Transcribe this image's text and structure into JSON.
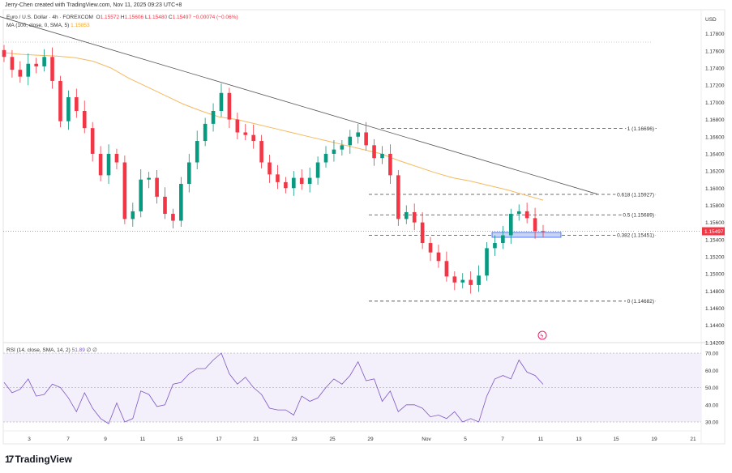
{
  "header": {
    "credit": "Jerry-Chen created with TradingView.com, Nov 11, 2025 09:23 UTC+8",
    "symbol": "Euro / U.S. Dollar · 4h · FOREXCOM",
    "open_label": "O",
    "open": "1.15572",
    "high_label": "H",
    "high": "1.15606",
    "low_label": "L",
    "low": "1.15480",
    "close_label": "C",
    "close": "1.15497",
    "change": "−0.00074 (−0.06%)",
    "ma_label": "MA (100, close, 0, SMA, 5)",
    "ma_value": "1.15853",
    "rsi_label": "RSI (14, close, SMA, 14, 2)",
    "rsi_value": "51.89",
    "rsi_extra": "∅ ∅"
  },
  "colors": {
    "up": "#089981",
    "down": "#f23645",
    "ma": "#f5b95f",
    "rsi": "#7e57c2",
    "rsi_band": "#f3effb",
    "trendline": "#555555",
    "box": "#2962ff"
  },
  "logo": {
    "text": "TradingView"
  },
  "chart_data": [
    {
      "type": "candlestick",
      "currency": "USD",
      "ylim": [
        1.142,
        1.179
      ],
      "yticks": [
        "1.17800",
        "1.17600",
        "1.17400",
        "1.17200",
        "1.17000",
        "1.16800",
        "1.16600",
        "1.16400",
        "1.16200",
        "1.16000",
        "1.15800",
        "1.15600",
        "1.15400",
        "1.15200",
        "1.15000",
        "1.14800",
        "1.14600",
        "1.14400",
        "1.14200"
      ],
      "xticks": [
        "3",
        "7",
        "9",
        "11",
        "15",
        "17",
        "21",
        "23",
        "25",
        "29",
        "Nov",
        "5",
        "7",
        "11",
        "13",
        "15",
        "19",
        "21"
      ],
      "closes": [
        1.1753,
        1.1738,
        1.173,
        1.1745,
        1.1742,
        1.1753,
        1.1725,
        1.1678,
        1.1706,
        1.169,
        1.167,
        1.164,
        1.1615,
        1.164,
        1.163,
        1.1564,
        1.1573,
        1.161,
        1.1612,
        1.159,
        1.157,
        1.1562,
        1.1605,
        1.163,
        1.1655,
        1.1675,
        1.169,
        1.1711,
        1.168,
        1.1665,
        1.1662,
        1.1655,
        1.163,
        1.1616,
        1.1607,
        1.16,
        1.1612,
        1.1605,
        1.1612,
        1.163,
        1.164,
        1.1645,
        1.165,
        1.166,
        1.1665,
        1.165,
        1.1635,
        1.164,
        1.1615,
        1.1564,
        1.1572,
        1.156,
        1.1536,
        1.1525,
        1.1515,
        1.1497,
        1.149,
        1.1493,
        1.1487,
        1.1498,
        1.153,
        1.1536,
        1.1545,
        1.157,
        1.1573,
        1.1565,
        1.155,
        1.15497
      ],
      "ma": [
        1.1758,
        1.1756,
        1.1755,
        1.1754,
        1.1752,
        1.1748,
        1.174,
        1.1728,
        1.1718,
        1.1708,
        1.1698,
        1.169,
        1.1683,
        1.168,
        1.1675,
        1.167,
        1.1665,
        1.166,
        1.1655,
        1.165,
        1.1645,
        1.164,
        1.1632,
        1.1625,
        1.1618,
        1.1612,
        1.1608,
        1.1603,
        1.1598,
        1.1592,
        1.1586
      ],
      "last_price": "1.15497",
      "trendline": {
        "start_price": 1.18,
        "end_price": 1.1593
      },
      "fib_levels": [
        {
          "label": "1 (1.16696)",
          "price": 1.16696
        },
        {
          "label": "0.618 (1.15927)",
          "price": 1.15927
        },
        {
          "label": "0.5 (1.15689)",
          "price": 1.15689
        },
        {
          "label": "0.382 (1.15451)",
          "price": 1.15451
        },
        {
          "label": "0 (1.14682)",
          "price": 1.14682
        }
      ]
    },
    {
      "type": "line",
      "name": "RSI",
      "ylim": [
        25,
        72
      ],
      "yticks": [
        "70.00",
        "60.00",
        "50.00",
        "40.00",
        "30.00"
      ],
      "band": [
        30,
        70
      ],
      "values": [
        53,
        47,
        49,
        55,
        45,
        46,
        52,
        50,
        44,
        36,
        47,
        38,
        32,
        29,
        41,
        30,
        32,
        48,
        46,
        39,
        40,
        52,
        53,
        58,
        61,
        61,
        66,
        70,
        58,
        52,
        56,
        50,
        46,
        38,
        37,
        37,
        34,
        45,
        42,
        44,
        50,
        55,
        52,
        57,
        65,
        54,
        55,
        42,
        48,
        36,
        40,
        40,
        38,
        33,
        34,
        32,
        36,
        30,
        32,
        30,
        45,
        55,
        57,
        55,
        66,
        59,
        57,
        51.89
      ]
    }
  ]
}
